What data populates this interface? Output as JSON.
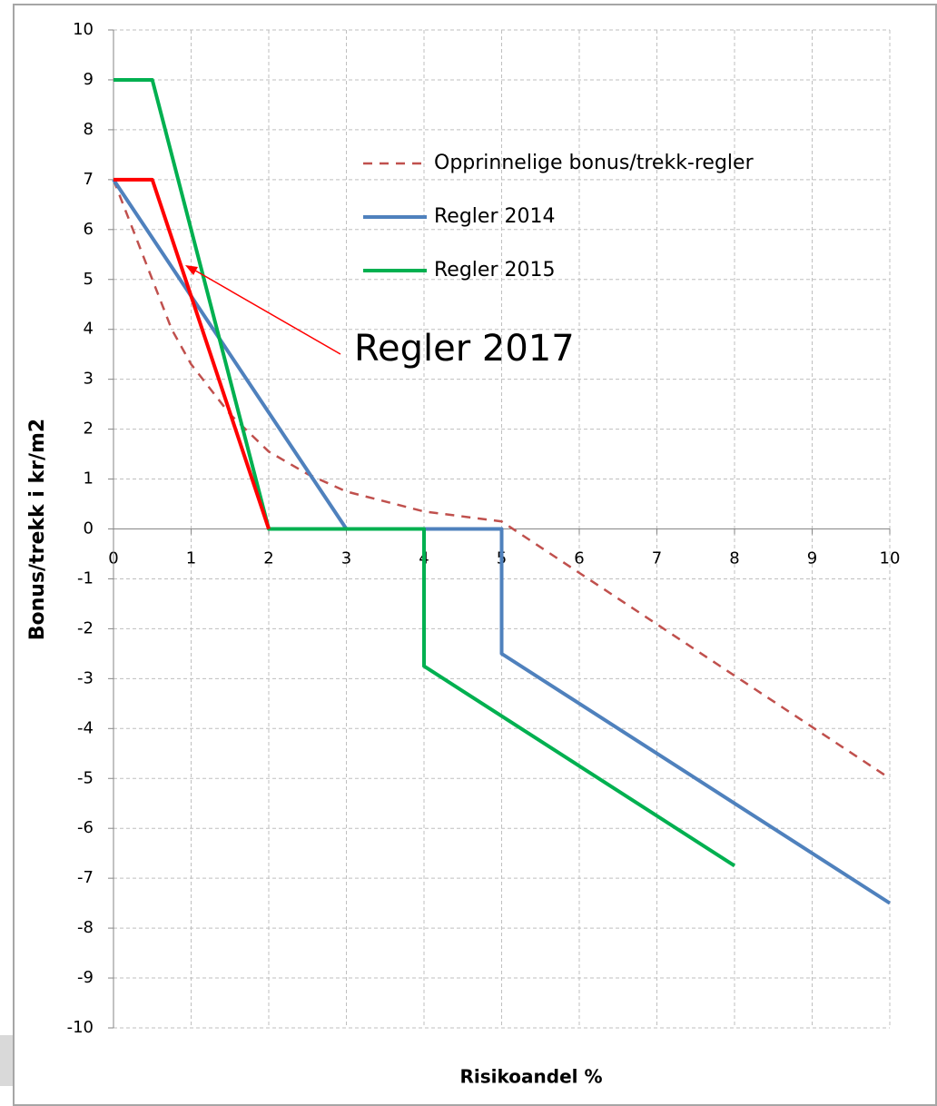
{
  "chart_data": {
    "type": "line",
    "xlabel": "Risikoandel %",
    "ylabel": "Bonus/trekk i kr/m2",
    "xlim": [
      0,
      10
    ],
    "xticks": [
      0,
      1,
      2,
      3,
      4,
      5,
      6,
      7,
      8,
      9,
      10
    ],
    "ylim": [
      -10,
      10
    ],
    "yticks": [
      -10,
      -9,
      -8,
      -7,
      -6,
      -5,
      -4,
      -3,
      -2,
      -1,
      0,
      1,
      2,
      3,
      4,
      5,
      6,
      7,
      8,
      9,
      10
    ],
    "grid": true,
    "series": [
      {
        "name": "Opprinnelige bonus/trekk-regler",
        "color": "#c0504d",
        "dashed": true,
        "x": [
          0,
          0.25,
          0.5,
          0.75,
          1,
          1.5,
          2,
          2.5,
          3,
          4,
          5,
          10
        ],
        "values": [
          7,
          6,
          5,
          4,
          3.3,
          2.3,
          1.55,
          1.1,
          0.75,
          0.35,
          0.15,
          -5
        ]
      },
      {
        "name": "Regler 2014",
        "color": "#4f81bd",
        "x": [
          0,
          3,
          5,
          5,
          10
        ],
        "values": [
          7,
          0,
          0,
          -2.5,
          -7.5
        ]
      },
      {
        "name": "Regler 2015",
        "color": "#00b050",
        "x": [
          0,
          0.5,
          2,
          4,
          4,
          8
        ],
        "values": [
          9,
          9,
          0,
          0,
          -2.75,
          -6.75
        ]
      },
      {
        "color": "#ff0000",
        "x": [
          0,
          0.5,
          2
        ],
        "values": [
          7,
          7,
          0
        ]
      }
    ],
    "annotations": [
      {
        "text": "Regler 2017",
        "color": "#ff0000"
      }
    ]
  }
}
